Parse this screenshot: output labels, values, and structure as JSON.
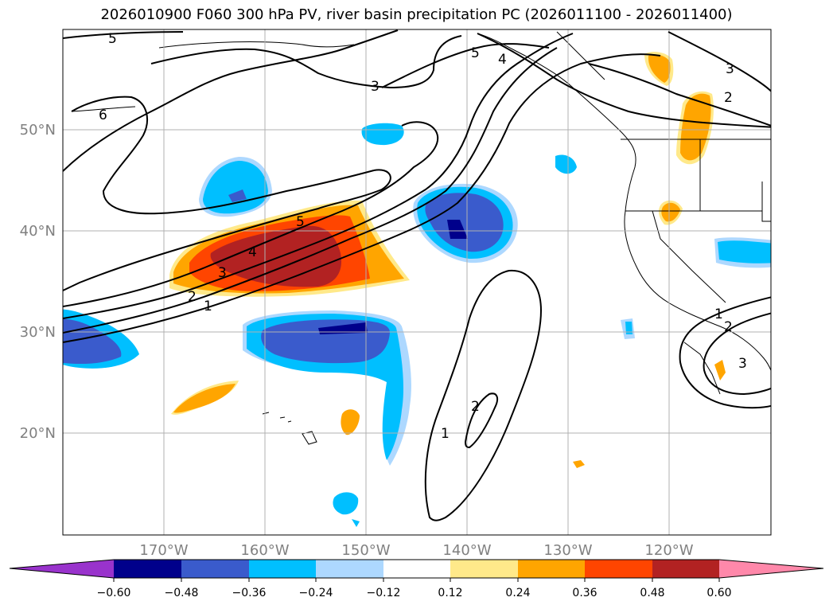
{
  "title": "2026010900 F060 300 hPa PV, river basin precipitation PC (2026011100 - 2026011400)",
  "map": {
    "lon_range": [
      180,
      110
    ],
    "lat_range": [
      10,
      60
    ],
    "lon_ticks": [
      "170°W",
      "160°W",
      "150°W",
      "140°W",
      "130°W",
      "120°W"
    ],
    "lat_ticks": [
      "50°N",
      "40°N",
      "30°N",
      "20°N"
    ],
    "contour_labels": [
      "5",
      "5",
      "6",
      "3",
      "4",
      "3",
      "2",
      "5",
      "4",
      "3",
      "2",
      "1",
      "1",
      "2",
      "2",
      "3",
      "1"
    ]
  },
  "colorbar": {
    "ticks": [
      "−0.60",
      "−0.48",
      "−0.36",
      "−0.24",
      "−0.12",
      "0.12",
      "0.24",
      "0.36",
      "0.48",
      "0.60"
    ],
    "colors": [
      "#9933cc",
      "#00008b",
      "#3a5bcc",
      "#00bfff",
      "#add8ff",
      "#ffffff",
      "#ffe98a",
      "#ffa500",
      "#ff4500",
      "#b22222",
      "#ff88aa"
    ]
  }
}
